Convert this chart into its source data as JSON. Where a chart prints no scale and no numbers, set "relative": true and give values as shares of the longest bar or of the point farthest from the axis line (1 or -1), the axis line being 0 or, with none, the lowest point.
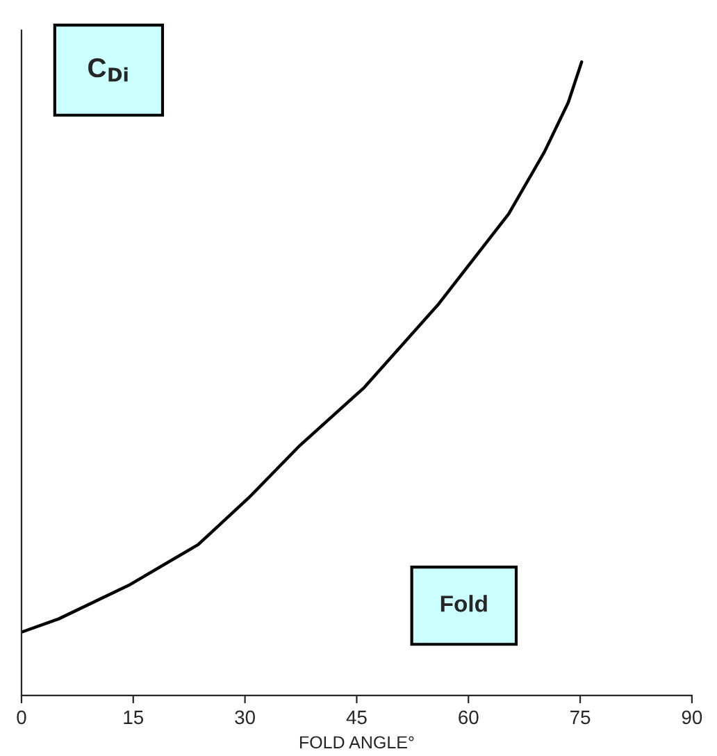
{
  "chart_data": {
    "type": "line",
    "relative": true,
    "xlabel": "FOLD ANGLE°",
    "x": [
      0,
      5,
      14.4,
      23.7,
      30.5,
      37.4,
      46,
      56,
      65.4,
      70.2,
      73.4,
      75.2
    ],
    "series": [
      {
        "color": "#000000",
        "values": [
          0.1,
          0.121,
          0.174,
          0.238,
          0.312,
          0.395,
          0.486,
          0.618,
          0.76,
          0.858,
          0.936,
          1.0
        ]
      }
    ],
    "xlim": [
      0,
      90
    ],
    "xticks": [
      0,
      15,
      30,
      45,
      60,
      75,
      90
    ],
    "tick_labels": "x",
    "grid": false,
    "legend": false,
    "annotations": [
      "C$_{Di}$",
      "Fold"
    ]
  }
}
